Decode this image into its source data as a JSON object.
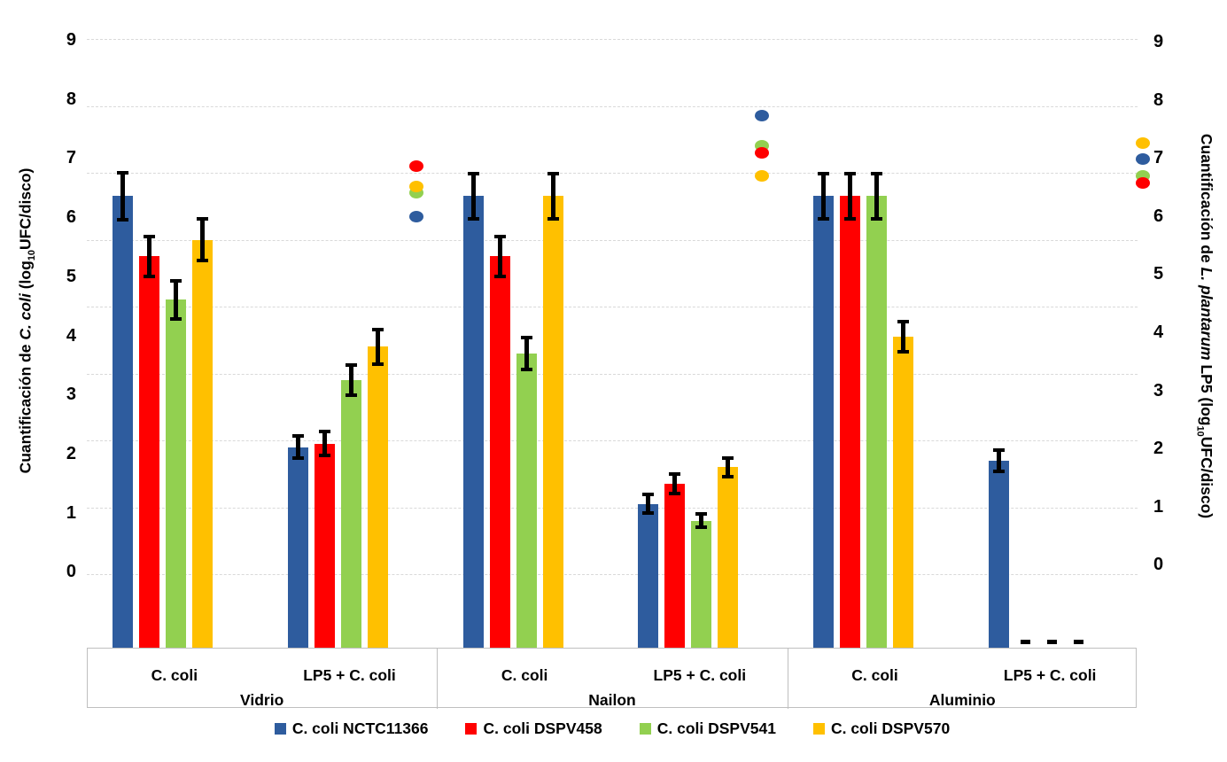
{
  "axes": {
    "left": {
      "title_prefix": "Cuantificación de ",
      "title_italic": "C. coli",
      "title_mid": " (log",
      "title_sub": "10",
      "title_suffix": "UFC/disco)",
      "ticks": [
        "9",
        "8",
        "7",
        "6",
        "5",
        "4",
        "3",
        "2",
        "1",
        "0"
      ]
    },
    "right": {
      "title_prefix": "Cuantificación de ",
      "title_italic": "L. plantarum",
      "title_mid": " LP5 (log",
      "title_sub": "10",
      "title_suffix": "UFC/disco)",
      "ticks": [
        "9",
        "8",
        "7",
        "6",
        "5",
        "4",
        "3",
        "2",
        "1",
        "0"
      ]
    }
  },
  "colors": {
    "blue": "#2E5C9E",
    "red": "#FF0000",
    "green": "#92D050",
    "yellow": "#FFC000",
    "gridline": "#D9D9D9",
    "category_border": "#BFBFBF",
    "error_bar": "#000000"
  },
  "chart_data": {
    "type": "bar",
    "grid": true,
    "legend_position": "bottom",
    "ylim": [
      0,
      9
    ],
    "materials": [
      "Vidrio",
      "Nailon",
      "Aluminio"
    ],
    "conditions": [
      "C. coli",
      "LP5 + C. coli"
    ],
    "categories": [
      "Vidrio / C. coli",
      "Vidrio / LP5 + C. coli",
      "Nailon / C. coli",
      "Nailon / LP5 + C. coli",
      "Aluminio / C. coli",
      "Aluminio / LP5 + C. coli"
    ],
    "series": [
      {
        "name": "C. coli NCTC11366",
        "color": "#2E5C9E",
        "values": [
          6.65,
          2.9,
          6.65,
          2.05,
          6.65,
          2.7
        ],
        "errors": [
          0.35,
          0.17,
          0.34,
          0.14,
          0.34,
          0.16
        ]
      },
      {
        "name": "C. coli DSPV458",
        "color": "#FF0000",
        "values": [
          5.75,
          2.95,
          5.75,
          2.35,
          6.65,
          0
        ],
        "errors": [
          0.3,
          0.18,
          0.3,
          0.15,
          0.34,
          0.05
        ]
      },
      {
        "name": "C. coli DSPV541",
        "color": "#92D050",
        "values": [
          5.1,
          3.9,
          4.3,
          1.8,
          6.65,
          0
        ],
        "errors": [
          0.28,
          0.22,
          0.24,
          0.1,
          0.34,
          0.05
        ]
      },
      {
        "name": "C. coli DSPV570",
        "color": "#FFC000",
        "values": [
          6.0,
          4.4,
          6.65,
          2.6,
          4.55,
          0
        ],
        "errors": [
          0.31,
          0.26,
          0.34,
          0.14,
          0.23,
          0.05
        ]
      }
    ],
    "lp5_scatter": {
      "description": "L. plantarum LP5 counts (right axis dots, LP5 + C. coli categories)",
      "x_materials": [
        "Vidrio",
        "Nailon",
        "Aluminio"
      ],
      "series": [
        {
          "name": "C. coli NCTC11366",
          "color": "#2E5C9E",
          "values": [
            6.35,
            7.85,
            7.2
          ]
        },
        {
          "name": "C. coli DSPV458",
          "color": "#FF0000",
          "values": [
            7.1,
            7.3,
            6.85
          ]
        },
        {
          "name": "C. coli DSPV541",
          "color": "#92D050",
          "values": [
            6.7,
            7.4,
            6.95
          ]
        },
        {
          "name": "C. coli DSPV570",
          "color": "#FFC000",
          "values": [
            6.8,
            6.95,
            7.45
          ]
        }
      ]
    }
  }
}
